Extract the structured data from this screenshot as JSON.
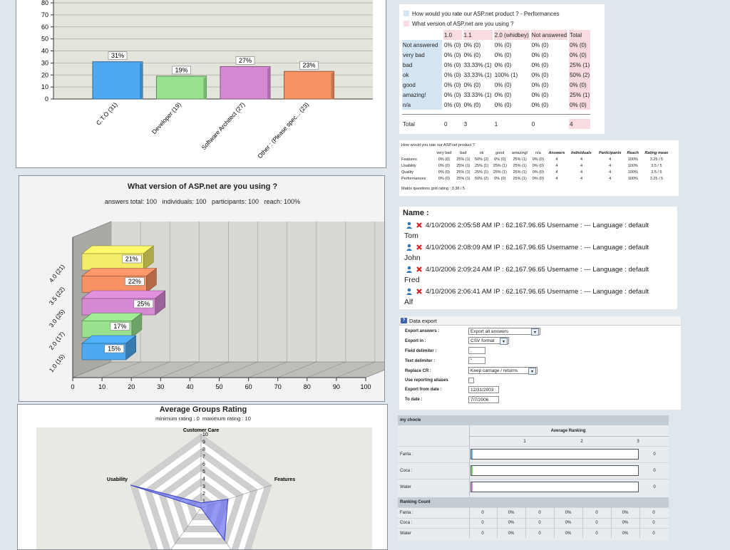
{
  "colors": {
    "blue": "#4daaf2",
    "green": "#98e28e",
    "violet": "#d78ad4",
    "orange": "#f89264",
    "yellow": "#f2ec66",
    "polygon": "#6a72f0"
  },
  "profile_chart": {
    "y_ticks": [
      "80",
      "70",
      "60",
      "50",
      "40",
      "30",
      "20",
      "10",
      "0"
    ],
    "chart_data": {
      "type": "bar",
      "categories": [
        "C.T.O (31)",
        "Developer (19)",
        "Software Architect (27)",
        "Other : (Please spec... (23)"
      ],
      "values": [
        31,
        19,
        27,
        23
      ],
      "labels": [
        "31%",
        "19%",
        "27%",
        "23%"
      ],
      "ylim": [
        0,
        80
      ]
    }
  },
  "version_chart": {
    "title": "What version of ASP.net are you using ?",
    "stats": "answers total: 100   individuals: 100   participants: 100   reach: 100%",
    "x_ticks": [
      "0",
      "10",
      "20",
      "30",
      "40",
      "50",
      "60",
      "70",
      "80",
      "90",
      "100"
    ],
    "chart_data": {
      "type": "bar",
      "categories": [
        "4.0 (21)",
        "3.5 (22)",
        "3.0 (25)",
        "2.0 (17)",
        "1.0 (15)"
      ],
      "values": [
        21,
        22,
        25,
        17,
        15
      ],
      "labels": [
        "21%",
        "22%",
        "25%",
        "17%",
        "15%"
      ],
      "xlim": [
        0,
        100
      ]
    }
  },
  "radar_chart": {
    "title": "Average Groups Rating",
    "subtitle": "minimum rating : 0  maximum rating : 10",
    "scale": [
      "1",
      "2",
      "3",
      "4",
      "5",
      "6",
      "7",
      "8",
      "9",
      "10"
    ],
    "chart_data": {
      "type": "radar",
      "axes": [
        "Customer Care",
        "Features",
        "",
        "",
        "Usability"
      ],
      "values": [
        0.7,
        3.8,
        5.4,
        0,
        10
      ],
      "range": [
        0,
        10
      ]
    }
  },
  "cross_tab": {
    "legend": [
      "How would you rate our ASP.net product ? - Performances",
      "What version of ASP.net are you using ?"
    ],
    "columns": [
      "1.0",
      "1.1",
      "2.0 (whidbey)",
      "Not answered",
      "Total"
    ],
    "rows": [
      {
        "label": "Not answered",
        "cells": [
          "0% (0)",
          "0% (0)",
          "0% (0)",
          "0% (0)",
          "0% (0)"
        ]
      },
      {
        "label": "very bad",
        "cells": [
          "0% (0)",
          "0% (0)",
          "0% (0)",
          "0% (0)",
          "0% (0)"
        ]
      },
      {
        "label": "bad",
        "cells": [
          "0% (0)",
          "33.33% (1)",
          "0% (0)",
          "0% (0)",
          "25% (1)"
        ]
      },
      {
        "label": "ok",
        "cells": [
          "0% (0)",
          "33.33% (1)",
          "100% (1)",
          "0% (0)",
          "50% (2)"
        ]
      },
      {
        "label": "good",
        "cells": [
          "0% (0)",
          "0% (0)",
          "0% (0)",
          "0% (0)",
          "0% (0)"
        ]
      },
      {
        "label": "amazing!",
        "cells": [
          "0% (0)",
          "33.33% (1)",
          "0% (0)",
          "0% (0)",
          "25% (1)"
        ]
      },
      {
        "label": "n/a",
        "cells": [
          "0% (0)",
          "0% (0)",
          "0% (0)",
          "0% (0)",
          "0% (0)"
        ]
      }
    ],
    "total": {
      "label": "Total",
      "cells": [
        "0",
        "3",
        "1",
        "0",
        "4"
      ]
    }
  },
  "matrix": {
    "title": "How would you rate our ASP.net product ?",
    "columns": [
      "very bad",
      "bad",
      "ok",
      "good",
      "amazing!",
      "n/a",
      "Answers",
      "Individuals",
      "Participants",
      "Reach",
      "Rating mean"
    ],
    "rows": [
      {
        "label": "Features",
        "cells": [
          "0% (0)",
          "25% (1)",
          "50% (2)",
          "0% (0)",
          "25% (1)",
          "0% (0)",
          "4",
          "4",
          "4",
          "100%",
          "3.25 / 5"
        ]
      },
      {
        "label": "Usability",
        "cells": [
          "0% (0)",
          "25% (1)",
          "25% (1)",
          "25% (1)",
          "25% (1)",
          "0% (0)",
          "4",
          "4",
          "4",
          "100%",
          "3.5 / 5"
        ]
      },
      {
        "label": "Quality",
        "cells": [
          "0% (0)",
          "25% (1)",
          "25% (1)",
          "25% (1)",
          "25% (1)",
          "0% (0)",
          "4",
          "4",
          "4",
          "100%",
          "3.5 / 5"
        ]
      },
      {
        "label": "Performances",
        "cells": [
          "0% (0)",
          "25% (1)",
          "50% (2)",
          "0% (0)",
          "25% (1)",
          "0% (0)",
          "4",
          "4",
          "4",
          "100%",
          "3.25 / 5"
        ]
      }
    ],
    "footer": "Matrix questions grid rating : 3.38 / 5"
  },
  "names": {
    "title": "Name :",
    "entries": [
      {
        "info": "4/10/2006 2:05:58 AM IP : 62.167.96.65 Username : --- Language : default",
        "name": "Tom"
      },
      {
        "info": "4/10/2006 2:08:09 AM IP : 62.167.96.65 Username : --- Language : default",
        "name": "John"
      },
      {
        "info": "4/10/2006 2:09:24 AM IP : 62.167.96.65 Username : --- Language : default",
        "name": "Fred"
      },
      {
        "info": "4/10/2006 2:06:41 AM IP : 62.167.96.65 Username : --- Language : default",
        "name": "Alf"
      }
    ]
  },
  "export": {
    "title": "Data export",
    "icon": "help-icon",
    "fields": {
      "export_answers": {
        "label": "Export answers :",
        "value": "Export all answers"
      },
      "export_in": {
        "label": "Export in :",
        "value": "CSV format"
      },
      "field_delim": {
        "label": "Field delimiter :",
        "value": ","
      },
      "text_delim": {
        "label": "Text delimiter :",
        "value": "\""
      },
      "replace_cr": {
        "label": "Replace CR :",
        "value": "Keep carriage / returns"
      },
      "aliases": {
        "label": "Use reporting aliases"
      },
      "from_date": {
        "label": "Export from date :",
        "value": "12/31/2003"
      },
      "to_date": {
        "label": "To date :",
        "value": "7/7/2006"
      }
    }
  },
  "ranking": {
    "title": "my chocie",
    "avg_header": "Average Ranking",
    "ranks": [
      "1",
      "2",
      "3"
    ],
    "items": [
      {
        "label": "Fanta :",
        "value": "0",
        "color": "#6fb2e8"
      },
      {
        "label": "Coca :",
        "value": "0",
        "color": "#7ed37a"
      },
      {
        "label": "Water",
        "value": "0",
        "color": "#cf8ad0"
      }
    ],
    "count_title": "Ranking Count",
    "count_rows": [
      {
        "label": "Fanta :",
        "cells": [
          "0",
          "0%",
          "0",
          "0%",
          "0",
          "0%",
          "0"
        ]
      },
      {
        "label": "Coca :",
        "cells": [
          "0",
          "0%",
          "0",
          "0%",
          "0",
          "0%",
          "0"
        ]
      },
      {
        "label": "Water",
        "cells": [
          "0",
          "0%",
          "0",
          "0%",
          "0",
          "0%",
          "0"
        ]
      }
    ]
  }
}
